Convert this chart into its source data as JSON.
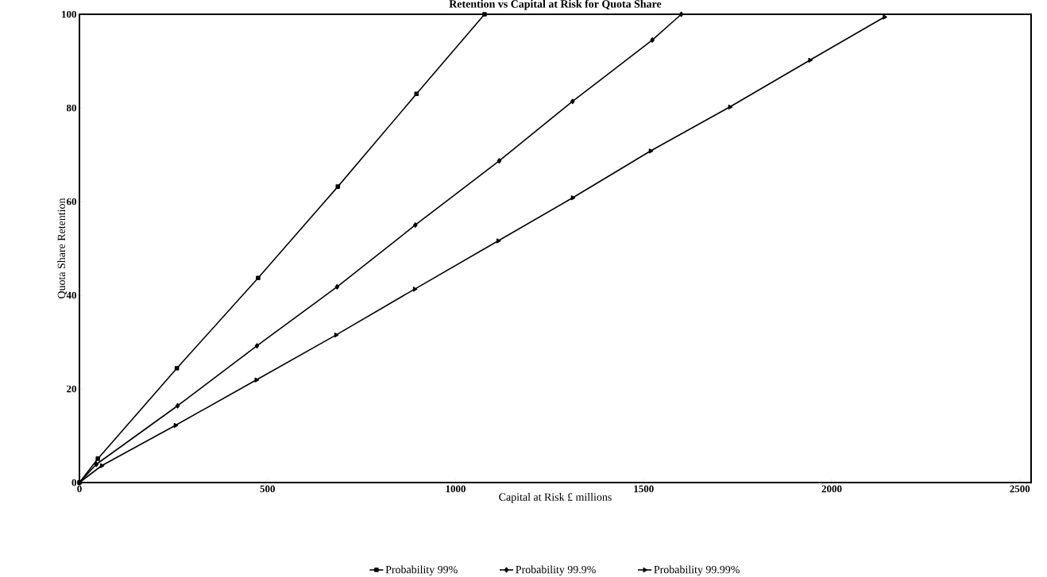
{
  "chart_data": {
    "type": "line",
    "title": "Retention vs Capital at Risk for Quota Share",
    "xlabel": "Capital at Risk £ millions",
    "ylabel": "Quota Share Retention",
    "xlim": [
      0,
      2530
    ],
    "ylim": [
      0,
      100
    ],
    "xticks": [
      0,
      500,
      1000,
      1500,
      2000,
      2500
    ],
    "yticks": [
      0,
      20,
      40,
      60,
      80,
      100
    ],
    "grid": false,
    "legend": "bottom",
    "series": [
      {
        "name": "Probability 99%",
        "color": "#000000",
        "marker": "square",
        "x": [
          0,
          49,
          259,
          475,
          687,
          896,
          1077
        ],
        "values": [
          0,
          5.1,
          24.4,
          43.7,
          63.2,
          83,
          100
        ]
      },
      {
        "name": "Probability 99.9%",
        "color": "#000000",
        "marker": "diamond",
        "x": [
          0,
          45,
          261,
          472,
          685,
          893,
          1116,
          1311,
          1523,
          1600
        ],
        "values": [
          0,
          3.9,
          16.4,
          29.2,
          41.8,
          55,
          68.7,
          81.4,
          94.5,
          100
        ]
      },
      {
        "name": "Probability 99.99%",
        "color": "#000000",
        "marker": "triangle",
        "x": [
          0,
          59,
          255,
          470,
          682,
          891,
          1113,
          1311,
          1518,
          1729,
          1942,
          2140
        ],
        "values": [
          0,
          3.6,
          12.2,
          21.9,
          31.5,
          41.3,
          51.6,
          60.8,
          70.8,
          80.2,
          90.2,
          99.4
        ]
      }
    ]
  }
}
